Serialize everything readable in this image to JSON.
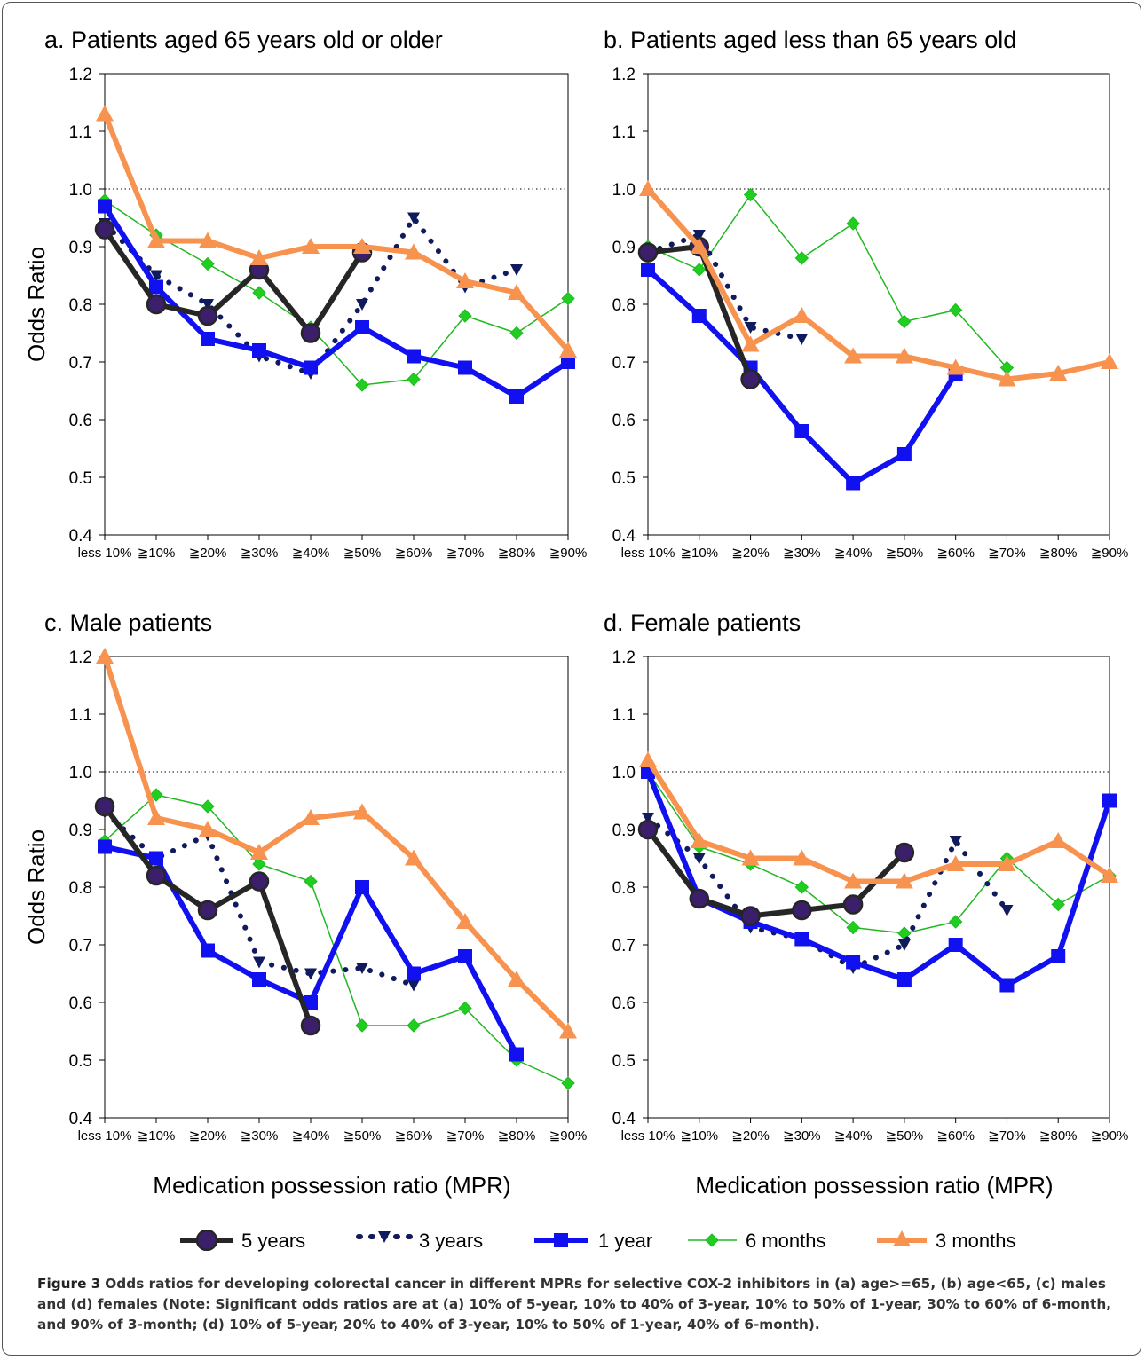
{
  "figure": {
    "caption_label": "Figure 3",
    "caption_text": "Odds ratios for developing colorectal cancer in different MPRs for selective COX-2 inhibitors in (a) age>=65, (b) age<65, (c) males and (d) females (Note: Significant odds ratios are at (a) 10% of 5-year, 10% to 40% of 3-year, 10% to 50% of 1-year, 30% to 60% of 6-month, and 90% of 3-month; (d) 10% of 5-year, 20% to 40% of 3-year, 10% to 50% of 1-year, 40% of 6-month)."
  },
  "legend": {
    "position": "bottom-center"
  },
  "series_styles": [
    {
      "name": "5 years",
      "color": "#262626",
      "marker": "circle",
      "marker_fill": "#3b1f6b",
      "line": "solid-thick"
    },
    {
      "name": "3 years",
      "color": "#101a5e",
      "marker": "triangle-down",
      "line": "dotted"
    },
    {
      "name": "1 year",
      "color": "#1010f0",
      "marker": "square",
      "line": "solid-thick"
    },
    {
      "name": "6 months",
      "color": "#22b822",
      "marker": "diamond",
      "marker_fill": "#1fcf1f",
      "line": "solid-thin"
    },
    {
      "name": "3 months",
      "color": "#f7934f",
      "marker": "triangle-up",
      "line": "solid-thick"
    }
  ],
  "chart_data": [
    {
      "type": "line",
      "title": "a. Patients aged 65 years old or older",
      "xlabel": "",
      "ylabel": "Odds Ratio",
      "categories": [
        "less 10%",
        "≧10%",
        "≧20%",
        "≧30%",
        "≧40%",
        "≧50%",
        "≧60%",
        "≧70%",
        "≧80%",
        "≧90%"
      ],
      "ylim": [
        0.4,
        1.2
      ],
      "yticks": [
        "0.4",
        "0.5",
        "0.6",
        "0.7",
        "0.8",
        "0.9",
        "1.0",
        "1.1",
        "1.2"
      ],
      "reference_line": 1.0,
      "series": [
        {
          "name": "5 years",
          "values": [
            0.93,
            0.8,
            0.78,
            0.86,
            0.75,
            0.89,
            null,
            null,
            null,
            null
          ]
        },
        {
          "name": "3 years",
          "values": [
            0.94,
            0.85,
            0.8,
            0.71,
            0.68,
            0.8,
            0.95,
            0.83,
            0.86,
            null
          ]
        },
        {
          "name": "1 year",
          "values": [
            0.97,
            0.83,
            0.74,
            0.72,
            0.69,
            0.76,
            0.71,
            0.69,
            0.64,
            0.7
          ]
        },
        {
          "name": "6 months",
          "values": [
            0.98,
            0.92,
            0.87,
            0.82,
            0.76,
            0.66,
            0.67,
            0.78,
            0.75,
            0.81
          ]
        },
        {
          "name": "3 months",
          "values": [
            1.13,
            0.91,
            0.91,
            0.88,
            0.9,
            0.9,
            0.89,
            0.84,
            0.82,
            0.72
          ]
        }
      ]
    },
    {
      "type": "line",
      "title": "b. Patients aged less than 65 years old",
      "xlabel": "",
      "ylabel": "",
      "categories": [
        "less 10%",
        "≧10%",
        "≧20%",
        "≧30%",
        "≧40%",
        "≧50%",
        "≧60%",
        "≧70%",
        "≧80%",
        "≧90%"
      ],
      "ylim": [
        0.4,
        1.2
      ],
      "yticks": [
        "0.4",
        "0.5",
        "0.6",
        "0.7",
        "0.8",
        "0.9",
        "1.0",
        "1.1",
        "1.2"
      ],
      "reference_line": 1.0,
      "series": [
        {
          "name": "5 years",
          "values": [
            0.89,
            0.9,
            0.67,
            null,
            null,
            null,
            null,
            null,
            null,
            null
          ]
        },
        {
          "name": "3 years",
          "values": [
            0.89,
            0.92,
            0.76,
            0.74,
            null,
            null,
            null,
            null,
            null,
            null
          ]
        },
        {
          "name": "1 year",
          "values": [
            0.86,
            0.78,
            0.69,
            0.58,
            0.49,
            0.54,
            0.68,
            null,
            null,
            null
          ]
        },
        {
          "name": "6 months",
          "values": [
            0.9,
            0.86,
            0.99,
            0.88,
            0.94,
            0.77,
            0.79,
            0.69,
            null,
            null
          ]
        },
        {
          "name": "3 months",
          "values": [
            1.0,
            0.9,
            0.73,
            0.78,
            0.71,
            0.71,
            0.69,
            0.67,
            0.68,
            0.7
          ]
        }
      ]
    },
    {
      "type": "line",
      "title": "c. Male patients",
      "xlabel": "Medication possession ratio (MPR)",
      "ylabel": "Odds Ratio",
      "categories": [
        "less 10%",
        "≧10%",
        "≧20%",
        "≧30%",
        "≧40%",
        "≧50%",
        "≧60%",
        "≧70%",
        "≧80%",
        "≧90%"
      ],
      "ylim": [
        0.4,
        1.2
      ],
      "yticks": [
        "0.4",
        "0.5",
        "0.6",
        "0.7",
        "0.8",
        "0.9",
        "1.0",
        "1.1",
        "1.2"
      ],
      "reference_line": 1.0,
      "series": [
        {
          "name": "5 years",
          "values": [
            0.94,
            0.82,
            0.76,
            0.81,
            0.56,
            null,
            null,
            null,
            null,
            null
          ]
        },
        {
          "name": "3 years",
          "values": [
            0.93,
            0.85,
            0.89,
            0.67,
            0.65,
            0.66,
            0.63,
            null,
            null,
            null
          ]
        },
        {
          "name": "1 year",
          "values": [
            0.87,
            0.85,
            0.69,
            0.64,
            0.6,
            0.8,
            0.65,
            0.68,
            0.51,
            null
          ]
        },
        {
          "name": "6 months",
          "values": [
            0.88,
            0.96,
            0.94,
            0.84,
            0.81,
            0.56,
            0.56,
            0.59,
            0.5,
            0.46
          ]
        },
        {
          "name": "3 months",
          "values": [
            1.2,
            0.92,
            0.9,
            0.86,
            0.92,
            0.93,
            0.85,
            0.74,
            0.64,
            0.55
          ]
        }
      ]
    },
    {
      "type": "line",
      "title": "d. Female patients",
      "xlabel": "Medication possession ratio (MPR)",
      "ylabel": "",
      "categories": [
        "less 10%",
        "≧10%",
        "≧20%",
        "≧30%",
        "≧40%",
        "≧50%",
        "≧60%",
        "≧70%",
        "≧80%",
        "≧90%"
      ],
      "ylim": [
        0.4,
        1.2
      ],
      "yticks": [
        "0.4",
        "0.5",
        "0.6",
        "0.7",
        "0.8",
        "0.9",
        "1.0",
        "1.1",
        "1.2"
      ],
      "reference_line": 1.0,
      "series": [
        {
          "name": "5 years",
          "values": [
            0.9,
            0.78,
            0.75,
            0.76,
            0.77,
            0.86,
            null,
            null,
            null,
            null
          ]
        },
        {
          "name": "3 years",
          "values": [
            0.92,
            0.85,
            0.73,
            0.71,
            0.66,
            0.7,
            0.88,
            0.76,
            null,
            null
          ]
        },
        {
          "name": "1 year",
          "values": [
            1.0,
            0.78,
            0.74,
            0.71,
            0.67,
            0.64,
            0.7,
            0.63,
            0.68,
            0.95
          ]
        },
        {
          "name": "6 months",
          "values": [
            1.0,
            0.87,
            0.84,
            0.8,
            0.73,
            0.72,
            0.74,
            0.85,
            0.77,
            0.82
          ]
        },
        {
          "name": "3 months",
          "values": [
            1.02,
            0.88,
            0.85,
            0.85,
            0.81,
            0.81,
            0.84,
            0.84,
            0.88,
            0.82
          ]
        }
      ]
    }
  ]
}
